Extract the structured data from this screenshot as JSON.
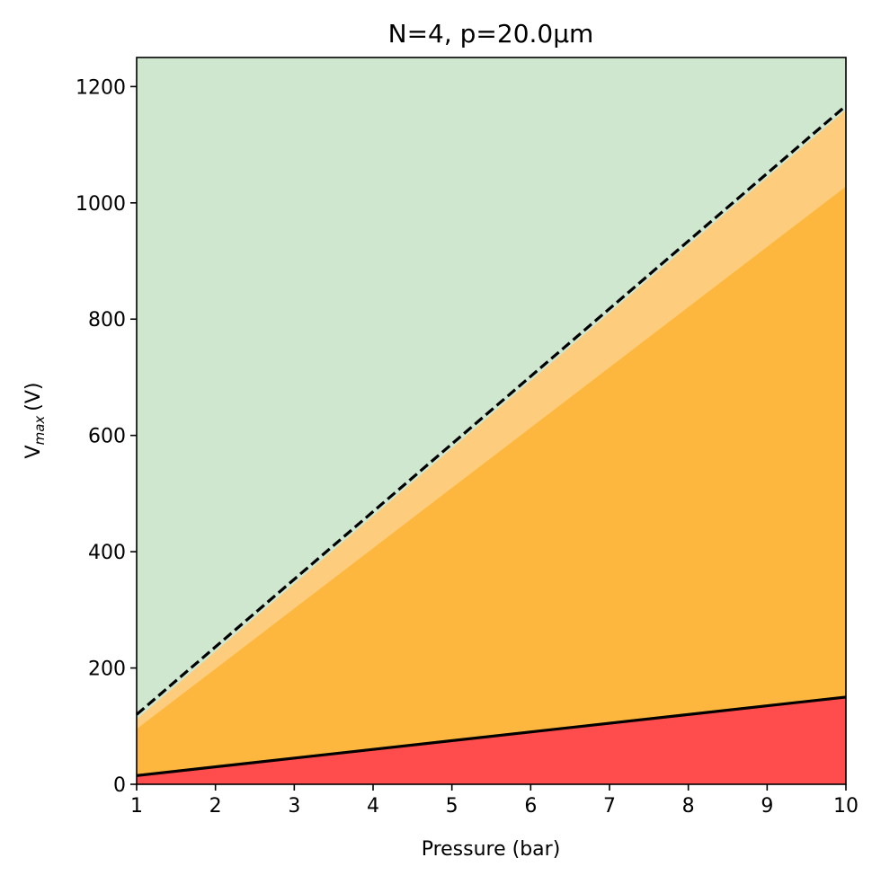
{
  "chart_data": {
    "type": "area",
    "title": "N=4, p=20.0μm",
    "xlabel": "Pressure (bar)",
    "ylabel": "V",
    "ylabel_sub": "max",
    "ylabel_unit": "(V)",
    "xlim": [
      1,
      10
    ],
    "ylim": [
      0,
      1250
    ],
    "xticks": [
      1,
      2,
      3,
      4,
      5,
      6,
      7,
      8,
      9,
      10
    ],
    "yticks": [
      0,
      200,
      400,
      600,
      800,
      1000,
      1200
    ],
    "grid": false,
    "x": [
      1,
      10
    ],
    "series": [
      {
        "role": "red-region",
        "values": [
          15,
          150
        ],
        "color": "#ff4d4d"
      },
      {
        "role": "orange-region",
        "values": [
          95,
          1028
        ],
        "color": "#fdb73e"
      },
      {
        "role": "light-orange-band",
        "values": [
          112,
          1160
        ],
        "color": "#fdcd7d"
      },
      {
        "role": "green-region",
        "values": [
          1250,
          1250
        ],
        "color": "#cfe6cf"
      },
      {
        "role": "solid-boundary",
        "values": [
          15,
          150
        ],
        "color": "#000000",
        "style": "solid"
      },
      {
        "role": "dashed-boundary",
        "values": [
          120,
          1167
        ],
        "color": "#000000",
        "style": "dashed"
      }
    ]
  }
}
